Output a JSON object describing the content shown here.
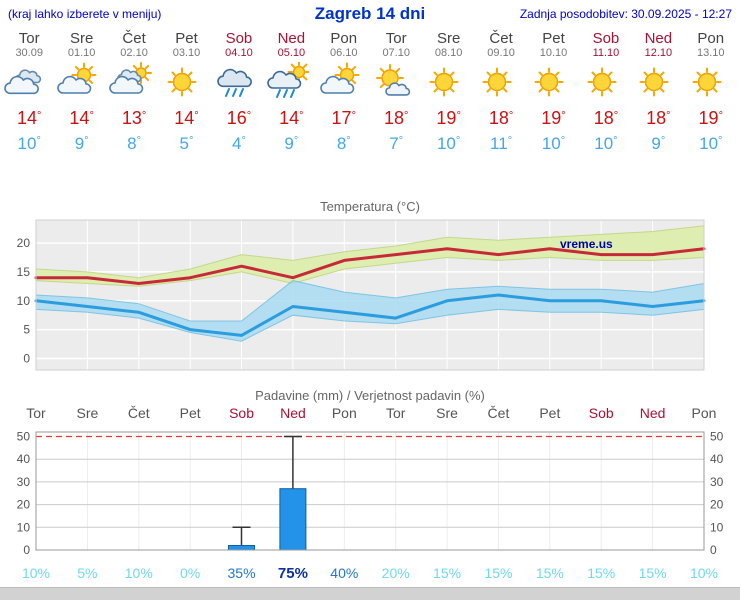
{
  "header": {
    "hint": "(kraj lahko izberete v meniju)",
    "title": "Zagreb 14 dni",
    "updated": "Zadnja posodobitev: 30.09.2025 - 12:27"
  },
  "watermark": "vreme.us",
  "days": [
    {
      "name": "Tor",
      "date": "30.09",
      "weekend": false,
      "icon": "cloudy",
      "tmax": 14,
      "tmin": 10
    },
    {
      "name": "Sre",
      "date": "01.10",
      "weekend": false,
      "icon": "partly-cloudy",
      "tmax": 14,
      "tmin": 9
    },
    {
      "name": "Čet",
      "date": "02.10",
      "weekend": false,
      "icon": "mostly-cloudy",
      "tmax": 13,
      "tmin": 8
    },
    {
      "name": "Pet",
      "date": "03.10",
      "weekend": false,
      "icon": "sunny",
      "tmax": 14,
      "tmin": 5
    },
    {
      "name": "Sob",
      "date": "04.10",
      "weekend": true,
      "icon": "rain",
      "tmax": 16,
      "tmin": 4
    },
    {
      "name": "Ned",
      "date": "05.10",
      "weekend": true,
      "icon": "showers",
      "tmax": 14,
      "tmin": 9
    },
    {
      "name": "Pon",
      "date": "06.10",
      "weekend": false,
      "icon": "partly-cloudy",
      "tmax": 17,
      "tmin": 8
    },
    {
      "name": "Tor",
      "date": "07.10",
      "weekend": false,
      "icon": "mostly-sunny",
      "tmax": 18,
      "tmin": 7
    },
    {
      "name": "Sre",
      "date": "08.10",
      "weekend": false,
      "icon": "sunny",
      "tmax": 19,
      "tmin": 10
    },
    {
      "name": "Čet",
      "date": "09.10",
      "weekend": false,
      "icon": "sunny",
      "tmax": 18,
      "tmin": 11
    },
    {
      "name": "Pet",
      "date": "10.10",
      "weekend": false,
      "icon": "sunny",
      "tmax": 19,
      "tmin": 10
    },
    {
      "name": "Sob",
      "date": "11.10",
      "weekend": true,
      "icon": "sunny",
      "tmax": 18,
      "tmin": 10
    },
    {
      "name": "Ned",
      "date": "12.10",
      "weekend": true,
      "icon": "sunny",
      "tmax": 18,
      "tmin": 9
    },
    {
      "name": "Pon",
      "date": "13.10",
      "weekend": false,
      "icon": "sunny",
      "tmax": 19,
      "tmin": 10
    }
  ],
  "chart_data": [
    {
      "type": "line",
      "title": "Temperatura (°C)",
      "ylim": [
        -2,
        24
      ],
      "yticks": [
        0,
        5,
        10,
        15,
        20
      ],
      "x_labels": [
        "Tor 30.09",
        "Sre 01.10",
        "Čet 02.10",
        "Pet 03.10",
        "Sob 04.10",
        "Ned 05.10",
        "Pon 06.10",
        "Tor 07.10",
        "Sre 08.10",
        "Čet 09.10",
        "Pet 10.10",
        "Sob 11.10",
        "Ned 12.10",
        "Pon 13.10"
      ],
      "series": [
        {
          "name": "max temperature",
          "color": "#c62a38",
          "values": [
            14,
            14,
            13,
            14,
            16,
            14,
            17,
            18,
            19,
            18,
            19,
            18,
            18,
            19
          ]
        },
        {
          "name": "min temperature",
          "color": "#2b9dde",
          "values": [
            10,
            9,
            8,
            5,
            4,
            9,
            8,
            7,
            10,
            11,
            10,
            10,
            9,
            10
          ]
        }
      ],
      "bands": [
        {
          "name": "max temperature range",
          "color": "#dcedaa",
          "edge": "#b7cf6e",
          "high": [
            15.5,
            15,
            14,
            15.5,
            18,
            17,
            18.5,
            19.5,
            21,
            20.5,
            21,
            21.5,
            22,
            23
          ],
          "low": [
            13.5,
            13,
            12.5,
            13.5,
            15,
            13,
            15.5,
            16.5,
            17.5,
            17,
            17.5,
            17,
            17,
            17.5
          ]
        },
        {
          "name": "min temperature range",
          "color": "#a6d9f0",
          "edge": "#5fb6e0",
          "high": [
            11,
            10.5,
            9.5,
            6.5,
            6.5,
            13.5,
            11.5,
            10.5,
            12,
            12.5,
            12,
            12,
            11.5,
            13
          ],
          "low": [
            8.5,
            8,
            7,
            4.5,
            3,
            7.5,
            6.5,
            6,
            7.5,
            8.5,
            8,
            8,
            7.5,
            8.5
          ]
        }
      ],
      "grid": true,
      "legend": "none"
    },
    {
      "type": "bar",
      "title": "Padavine (mm) / Verjetnost padavin (%)",
      "categories": [
        "Tor",
        "Sre",
        "Čet",
        "Pet",
        "Sob",
        "Ned",
        "Pon",
        "Tor",
        "Sre",
        "Čet",
        "Pet",
        "Sob",
        "Ned",
        "Pon"
      ],
      "weekend_flags": [
        false,
        false,
        false,
        false,
        true,
        true,
        false,
        false,
        false,
        false,
        false,
        true,
        true,
        false
      ],
      "precip_mm": [
        0,
        0,
        0,
        0,
        2,
        27,
        0,
        0,
        0,
        0,
        0,
        0,
        0,
        0
      ],
      "precip_max_mm": [
        0,
        0,
        0,
        0,
        10,
        50,
        0,
        0,
        0,
        0,
        0,
        0,
        0,
        0
      ],
      "probability_pct": [
        10,
        5,
        10,
        0,
        35,
        75,
        40,
        20,
        15,
        15,
        15,
        15,
        15,
        10
      ],
      "ylim": [
        0,
        52
      ],
      "yticks": [
        0,
        10,
        20,
        30,
        40,
        50
      ],
      "limit_line": 50,
      "grid": true,
      "legend": "none"
    }
  ],
  "colors": {
    "accent_blue": "#0000cc",
    "title_blue": "#0033cc",
    "tmax_red": "#cc1111",
    "tmin_blue": "#44a8e8",
    "weekend_red": "#aa1133",
    "weekday_gray": "#555555",
    "temp_plot_bg": "#ececec",
    "temp_band_max": "#dcedaa",
    "temp_band_min": "#a6d9f0",
    "temp_line_max": "#c62a38",
    "temp_line_min": "#2b9dde",
    "precip_bar": "#2293e8",
    "precip_bar_edge": "#0d5fa8",
    "limit_line_red": "#ee3333",
    "pct_low": "#6fd8ef",
    "pct_mid": "#2277cc",
    "pct_high": "#0b2fa5",
    "watermark_blue": "#0000aa"
  }
}
